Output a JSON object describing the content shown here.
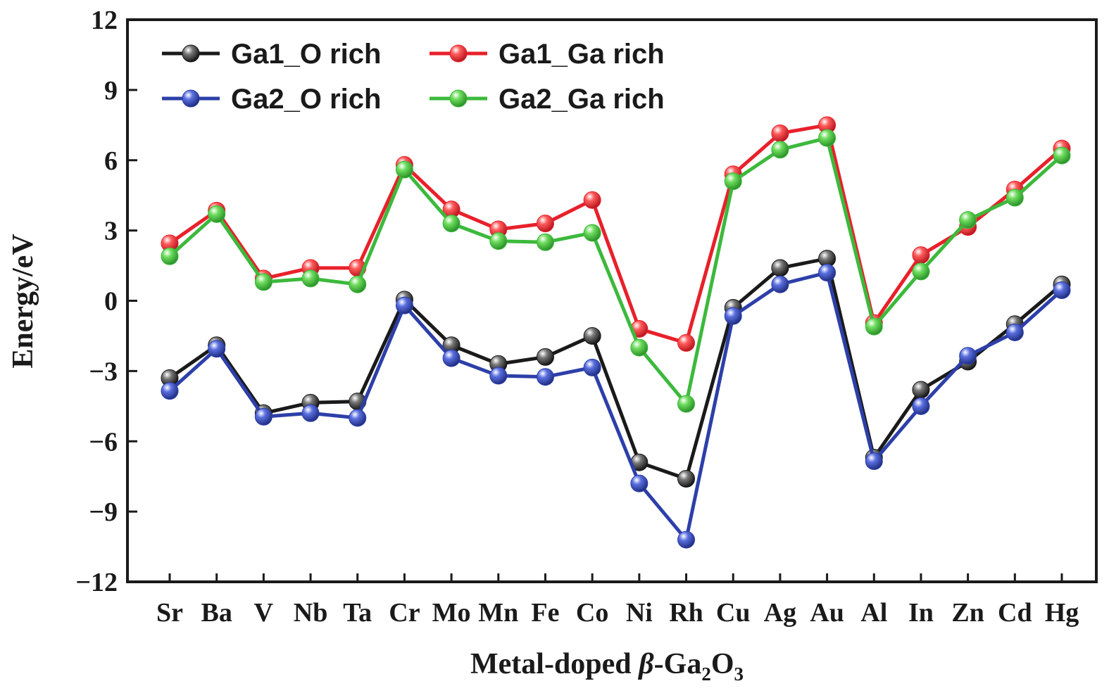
{
  "chart_data": {
    "type": "line",
    "categories": [
      "Sr",
      "Ba",
      "V",
      "Nb",
      "Ta",
      "Cr",
      "Mo",
      "Mn",
      "Fe",
      "Co",
      "Ni",
      "Rh",
      "Cu",
      "Ag",
      "Au",
      "Al",
      "In",
      "Zn",
      "Cd",
      "Hg"
    ],
    "series": [
      {
        "name": "Ga1_O rich",
        "color": "#1a1a1a",
        "values": [
          -3.3,
          -1.9,
          -4.8,
          -4.35,
          -4.3,
          0.05,
          -1.9,
          -2.7,
          -2.4,
          -1.5,
          -6.9,
          -7.6,
          -0.3,
          1.4,
          1.8,
          -6.7,
          -3.8,
          -2.6,
          -1.0,
          0.7
        ]
      },
      {
        "name": "Ga1_Ga rich",
        "color": "#e8202a",
        "values": [
          2.45,
          3.85,
          0.95,
          1.4,
          1.4,
          5.8,
          3.9,
          3.05,
          3.3,
          4.3,
          -1.2,
          -1.8,
          5.4,
          7.15,
          7.5,
          -0.95,
          1.95,
          3.15,
          4.75,
          6.5
        ]
      },
      {
        "name": "Ga2_O rich",
        "color": "#2d3fa8",
        "values": [
          -3.85,
          -2.05,
          -4.95,
          -4.8,
          -5.0,
          -0.2,
          -2.45,
          -3.2,
          -3.25,
          -2.85,
          -7.8,
          -10.2,
          -0.65,
          0.7,
          1.2,
          -6.85,
          -4.5,
          -2.35,
          -1.35,
          0.45
        ]
      },
      {
        "name": "Ga2_Ga rich",
        "color": "#3cb93c",
        "values": [
          1.9,
          3.7,
          0.8,
          0.95,
          0.7,
          5.6,
          3.3,
          2.55,
          2.5,
          2.9,
          -2.0,
          -4.4,
          5.1,
          6.45,
          6.95,
          -1.1,
          1.25,
          3.45,
          4.4,
          6.2
        ]
      }
    ],
    "xlabel_parts": {
      "prefix": "Metal-doped ",
      "beta": "β",
      "mid": "-Ga",
      "sub1": "2",
      "o": "O",
      "sub2": "3"
    },
    "ylabel": "Energy/eV",
    "ylim": [
      -12,
      12
    ],
    "yticks": [
      "12",
      "9",
      "6",
      "3",
      "0",
      "−3",
      "−6",
      "−9",
      "−12"
    ],
    "ytick_values": [
      12,
      9,
      6,
      3,
      0,
      -3,
      -6,
      -9,
      -12
    ],
    "legend_location": "upper-left",
    "grid": false
  }
}
